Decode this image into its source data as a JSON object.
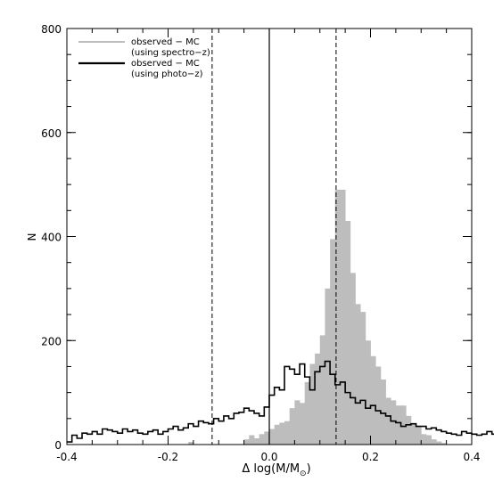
{
  "chart_data": {
    "type": "histogram",
    "xlabel": "Δ log(M/M",
    "xlabel_sub": "⊙",
    "xlabel_close": ")",
    "ylabel": "N",
    "xlim": [
      -0.4,
      0.4
    ],
    "ylim": [
      0,
      800
    ],
    "xticks": [
      -0.4,
      -0.2,
      0.0,
      0.2,
      0.4
    ],
    "xtick_labels": [
      "-0.4",
      "-0.2",
      "0.0",
      "0.2",
      "0.4"
    ],
    "yticks": [
      0,
      200,
      400,
      600,
      800
    ],
    "ytick_labels": [
      "0",
      "200",
      "400",
      "600",
      "800"
    ],
    "bin_start": -0.4,
    "bin_width": 0.01,
    "legend": {
      "location": "top-left",
      "entries": [
        {
          "label": "observed − MC",
          "sublabel": "(using spectro−z)",
          "color": "#bdbdbd"
        },
        {
          "label": "observed − MC",
          "sublabel": "(using photo−z)",
          "color": "#000000"
        }
      ]
    },
    "vlines": [
      {
        "x": -0.113,
        "style": "dashed"
      },
      {
        "x": 0.0,
        "style": "solid"
      },
      {
        "x": 0.132,
        "style": "dashed"
      }
    ],
    "series": [
      {
        "name": "observed − MC (using spectro−z)",
        "style": "filled",
        "color": "#bdbdbd",
        "values": [
          0,
          0,
          0,
          0,
          0,
          0,
          0,
          0,
          0,
          0,
          0,
          0,
          0,
          0,
          0,
          0,
          0,
          0,
          0,
          0,
          0,
          0,
          0,
          0,
          5,
          0,
          0,
          0,
          0,
          0,
          0,
          0,
          0,
          0,
          0,
          10,
          18,
          12,
          20,
          25,
          30,
          38,
          42,
          45,
          70,
          85,
          80,
          120,
          155,
          175,
          210,
          300,
          395,
          490,
          490,
          430,
          330,
          270,
          255,
          200,
          170,
          150,
          125,
          90,
          85,
          75,
          75,
          55,
          40,
          35,
          20,
          18,
          10,
          6,
          3,
          0,
          0,
          0,
          0,
          0,
          0,
          0,
          0,
          0,
          0,
          0,
          0,
          0,
          0,
          0,
          0,
          0,
          0,
          0,
          0,
          0,
          0,
          0,
          0,
          0
        ]
      },
      {
        "name": "observed − MC (using photo−z)",
        "style": "step",
        "color": "#000000",
        "values": [
          5,
          18,
          12,
          22,
          20,
          25,
          20,
          30,
          28,
          25,
          22,
          30,
          25,
          28,
          22,
          20,
          25,
          28,
          20,
          25,
          30,
          35,
          28,
          32,
          40,
          35,
          45,
          42,
          40,
          50,
          45,
          55,
          50,
          60,
          62,
          70,
          65,
          60,
          55,
          72,
          95,
          110,
          105,
          150,
          145,
          135,
          155,
          130,
          105,
          140,
          150,
          160,
          135,
          115,
          120,
          100,
          90,
          80,
          85,
          70,
          75,
          65,
          60,
          55,
          45,
          42,
          35,
          38,
          40,
          35,
          35,
          30,
          32,
          28,
          25,
          22,
          20,
          18,
          25,
          22,
          20,
          18,
          20,
          25,
          20,
          22,
          18,
          20,
          15,
          18,
          15,
          12,
          10,
          12,
          15,
          8,
          10,
          12,
          8,
          10
        ]
      }
    ]
  }
}
